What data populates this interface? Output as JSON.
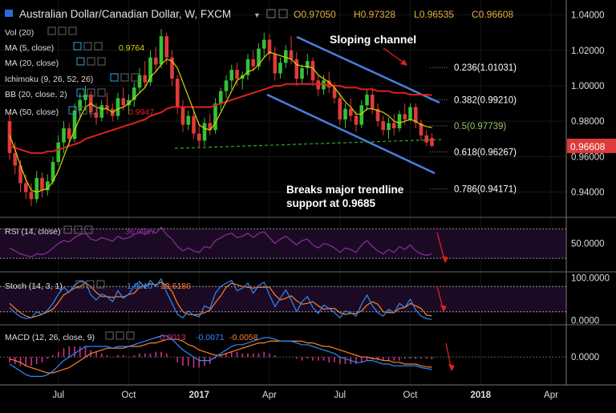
{
  "header": {
    "symbol": "Australian Dollar/Canadian Dollar, W, FXCM",
    "o_label": "O",
    "o": "0.97050",
    "h_label": "H",
    "h": "0.97328",
    "l_label": "L",
    "l": "0.96535",
    "c_label": "C",
    "c": "0.96608"
  },
  "legend": {
    "vol": "Vol (20)",
    "ma5": "MA (5, close)",
    "ma5_value": "0.9764",
    "ma20": "MA (20, close)",
    "ichimoku": "Ichimoku (9, 26, 52, 26)",
    "bb": "BB (20, close, 2)",
    "ma50": "MA (50, close)",
    "ma50_value": "0.9947"
  },
  "annotations": {
    "channel": "Sloping channel",
    "breaks_line1": "Breaks major trendline",
    "breaks_line2": "support at 0.9685"
  },
  "colors": {
    "bull": "#35c235",
    "bear": "#e03a3a",
    "ma5": "#d8d800",
    "ma50": "#e02020",
    "channel": "#4a7fe0",
    "rsi": "#8b2f9c",
    "stoch_k": "#2a8cff",
    "stoch_d": "#ff7f2a",
    "macd": "#2a8cff",
    "signal": "#ff7f2a",
    "hist": "#d0308a",
    "price_tag": "#e03a3a"
  },
  "chart_data": {
    "type": "candlestick",
    "price_axis": {
      "ticks": [
        "1.04000",
        "1.02000",
        "1.00000",
        "0.98000",
        "0.96000",
        "0.94000"
      ],
      "ylim": [
        0.928,
        1.043
      ]
    },
    "last_price": "0.96608",
    "x_ticks": [
      "Jul",
      "Oct",
      "2017",
      "Apr",
      "Jul",
      "Oct",
      "2018",
      "Apr"
    ],
    "fibonacci": [
      {
        "label": "0.236(1.01031)",
        "value": 1.01031
      },
      {
        "label": "0.382(0.99210)",
        "value": 0.9921
      },
      {
        "label": "0.5(0.97739)",
        "value": 0.97739
      },
      {
        "label": "0.618(0.96267)",
        "value": 0.96267
      },
      {
        "label": "0.786(0.94171)",
        "value": 0.94171
      }
    ],
    "candles": [
      [
        0.98,
        0.985,
        0.958,
        0.962
      ],
      [
        0.962,
        0.968,
        0.95,
        0.955
      ],
      [
        0.955,
        0.958,
        0.94,
        0.945
      ],
      [
        0.945,
        0.95,
        0.936,
        0.94
      ],
      [
        0.94,
        0.945,
        0.932,
        0.936
      ],
      [
        0.936,
        0.952,
        0.934,
        0.948
      ],
      [
        0.948,
        0.951,
        0.937,
        0.941
      ],
      [
        0.941,
        0.95,
        0.938,
        0.946
      ],
      [
        0.946,
        0.96,
        0.944,
        0.957
      ],
      [
        0.957,
        0.972,
        0.955,
        0.968
      ],
      [
        0.968,
        0.98,
        0.962,
        0.976
      ],
      [
        0.976,
        0.979,
        0.966,
        0.97
      ],
      [
        0.97,
        0.99,
        0.968,
        0.986
      ],
      [
        0.986,
        0.996,
        0.981,
        0.992
      ],
      [
        0.992,
        1.0,
        0.986,
        0.995
      ],
      [
        0.995,
        0.997,
        0.982,
        0.985
      ],
      [
        0.985,
        0.99,
        0.978,
        0.982
      ],
      [
        0.982,
        0.992,
        0.98,
        0.989
      ],
      [
        0.989,
        0.996,
        0.984,
        0.987
      ],
      [
        0.987,
        0.99,
        0.98,
        0.983
      ],
      [
        0.983,
        0.996,
        0.981,
        0.993
      ],
      [
        0.993,
        0.999,
        0.986,
        0.989
      ],
      [
        0.989,
        0.995,
        0.984,
        0.992
      ],
      [
        0.992,
        1.002,
        0.988,
        0.999
      ],
      [
        0.999,
        1.01,
        0.996,
        1.006
      ],
      [
        1.006,
        1.014,
        0.999,
        1.002
      ],
      [
        1.002,
        1.02,
        1.0,
        1.016
      ],
      [
        1.016,
        1.022,
        1.008,
        1.012
      ],
      [
        1.012,
        1.032,
        1.01,
        1.028
      ],
      [
        1.028,
        1.03,
        1.012,
        1.016
      ],
      [
        1.016,
        1.02,
        1.0,
        1.004
      ],
      [
        1.004,
        1.006,
        0.984,
        0.988
      ],
      [
        0.988,
        0.992,
        0.974,
        0.978
      ],
      [
        0.978,
        0.986,
        0.975,
        0.983
      ],
      [
        0.983,
        0.986,
        0.97,
        0.973
      ],
      [
        0.973,
        0.978,
        0.965,
        0.969
      ],
      [
        0.969,
        0.982,
        0.966,
        0.979
      ],
      [
        0.979,
        0.984,
        0.972,
        0.975
      ],
      [
        0.975,
        0.993,
        0.973,
        0.99
      ],
      [
        0.99,
        0.999,
        0.986,
        0.997
      ],
      [
        0.997,
        1.006,
        0.993,
        1.003
      ],
      [
        1.003,
        1.012,
        0.998,
        1.009
      ],
      [
        1.009,
        1.013,
        1.0,
        1.004
      ],
      [
        1.004,
        1.008,
        0.998,
        1.006
      ],
      [
        1.006,
        1.018,
        1.003,
        1.015
      ],
      [
        1.015,
        1.02,
        1.008,
        1.011
      ],
      [
        1.011,
        1.024,
        1.009,
        1.021
      ],
      [
        1.021,
        1.03,
        1.016,
        1.026
      ],
      [
        1.026,
        1.029,
        1.014,
        1.018
      ],
      [
        1.018,
        1.022,
        1.003,
        1.007
      ],
      [
        1.007,
        1.016,
        1.004,
        1.013
      ],
      [
        1.013,
        1.023,
        1.01,
        1.02
      ],
      [
        1.02,
        1.028,
        1.012,
        1.015
      ],
      [
        1.015,
        1.019,
        1.0,
        1.004
      ],
      [
        1.004,
        1.012,
        1.001,
        1.01
      ],
      [
        1.01,
        1.018,
        1.006,
        1.014
      ],
      [
        1.014,
        1.016,
        1.0,
        1.003
      ],
      [
        1.003,
        1.006,
        0.994,
        0.998
      ],
      [
        0.998,
        1.006,
        0.995,
        1.003
      ],
      [
        1.003,
        1.008,
        0.996,
        0.999
      ],
      [
        0.999,
        1.002,
        0.99,
        0.993
      ],
      [
        0.993,
        0.996,
        0.978,
        0.981
      ],
      [
        0.981,
        0.99,
        0.976,
        0.987
      ],
      [
        0.987,
        0.993,
        0.98,
        0.983
      ],
      [
        0.983,
        0.986,
        0.974,
        0.978
      ],
      [
        0.978,
        0.992,
        0.976,
        0.989
      ],
      [
        0.989,
        0.998,
        0.986,
        0.995
      ],
      [
        0.995,
        0.999,
        0.984,
        0.987
      ],
      [
        0.987,
        0.99,
        0.977,
        0.98
      ],
      [
        0.98,
        0.983,
        0.972,
        0.975
      ],
      [
        0.975,
        0.982,
        0.97,
        0.979
      ],
      [
        0.979,
        0.984,
        0.972,
        0.976
      ],
      [
        0.976,
        0.986,
        0.974,
        0.984
      ],
      [
        0.984,
        0.99,
        0.978,
        0.981
      ],
      [
        0.981,
        0.99,
        0.98,
        0.988
      ],
      [
        0.988,
        0.99,
        0.976,
        0.979
      ],
      [
        0.979,
        0.981,
        0.969,
        0.972
      ],
      [
        0.972,
        0.975,
        0.966,
        0.968
      ],
      [
        0.9705,
        0.97328,
        0.96535,
        0.96608
      ]
    ],
    "ma5": [
      0.972,
      0.964,
      0.955,
      0.947,
      0.941,
      0.94,
      0.941,
      0.942,
      0.946,
      0.952,
      0.96,
      0.968,
      0.975,
      0.982,
      0.988,
      0.99,
      0.988,
      0.987,
      0.987,
      0.985,
      0.987,
      0.988,
      0.99,
      0.993,
      0.996,
      0.999,
      1.005,
      1.008,
      1.012,
      1.015,
      1.014,
      1.01,
      1.002,
      0.994,
      0.986,
      0.978,
      0.976,
      0.975,
      0.979,
      0.985,
      0.991,
      0.997,
      1.003,
      1.005,
      1.008,
      1.009,
      1.012,
      1.016,
      1.019,
      1.018,
      1.017,
      1.016,
      1.015,
      1.012,
      1.011,
      1.011,
      1.01,
      1.006,
      1.004,
      1.002,
      0.999,
      0.995,
      0.991,
      0.988,
      0.984,
      0.984,
      0.987,
      0.987,
      0.986,
      0.985,
      0.983,
      0.98,
      0.979,
      0.98,
      0.981,
      0.98,
      0.978,
      0.977,
      0.9764
    ],
    "ma50": [
      0.966,
      0.965,
      0.964,
      0.963,
      0.962,
      0.962,
      0.962,
      0.963,
      0.963,
      0.964,
      0.965,
      0.966,
      0.967,
      0.968,
      0.97,
      0.971,
      0.972,
      0.973,
      0.974,
      0.975,
      0.976,
      0.977,
      0.978,
      0.979,
      0.98,
      0.981,
      0.983,
      0.984,
      0.985,
      0.987,
      0.988,
      0.988,
      0.988,
      0.988,
      0.988,
      0.988,
      0.988,
      0.988,
      0.989,
      0.99,
      0.991,
      0.992,
      0.993,
      0.994,
      0.995,
      0.996,
      0.997,
      0.998,
      0.999,
      1.0,
      1.0,
      1.001,
      1.001,
      1.001,
      1.001,
      1.001,
      1.001,
      1.001,
      1.001,
      1.0,
      1.0,
      1.0,
      0.999,
      0.999,
      0.999,
      0.998,
      0.998,
      0.998,
      0.997,
      0.997,
      0.997,
      0.996,
      0.996,
      0.996,
      0.995,
      0.995,
      0.995,
      0.995,
      0.9947
    ],
    "rsi": {
      "label": "RSI (14, close)",
      "value": "36.0967",
      "ticks": [
        "50.0000"
      ],
      "ylim": [
        15,
        80
      ],
      "values": [
        44,
        40,
        36,
        34,
        32,
        36,
        35,
        38,
        44,
        50,
        54,
        52,
        58,
        62,
        64,
        56,
        54,
        58,
        56,
        53,
        60,
        56,
        58,
        62,
        66,
        62,
        68,
        64,
        72,
        62,
        56,
        46,
        40,
        44,
        40,
        38,
        46,
        44,
        54,
        58,
        62,
        64,
        58,
        60,
        64,
        58,
        64,
        66,
        58,
        50,
        56,
        60,
        54,
        48,
        54,
        56,
        48,
        44,
        50,
        48,
        44,
        38,
        44,
        42,
        38,
        48,
        54,
        46,
        40,
        36,
        42,
        38,
        46,
        42,
        48,
        40,
        36,
        34,
        36
      ]
    },
    "stoch": {
      "label": "Stoch (14, 3, 1)",
      "k_value": "1.9010",
      "d_value": "10.6186",
      "ticks": [
        "100.0000",
        "0.0000"
      ],
      "ylim": [
        -5,
        105
      ],
      "k": [
        30,
        18,
        8,
        4,
        6,
        20,
        14,
        24,
        40,
        62,
        78,
        66,
        84,
        92,
        90,
        60,
        48,
        62,
        56,
        44,
        70,
        52,
        62,
        80,
        92,
        76,
        94,
        80,
        98,
        66,
        40,
        14,
        6,
        22,
        12,
        8,
        34,
        28,
        64,
        80,
        88,
        94,
        70,
        76,
        88,
        64,
        82,
        90,
        60,
        32,
        52,
        72,
        48,
        20,
        44,
        56,
        30,
        16,
        36,
        28,
        18,
        6,
        22,
        18,
        10,
        38,
        60,
        34,
        18,
        10,
        26,
        18,
        40,
        30,
        50,
        24,
        10,
        4,
        2
      ],
      "d": [
        40,
        28,
        18,
        10,
        6,
        10,
        14,
        20,
        26,
        42,
        60,
        68,
        76,
        80,
        88,
        80,
        66,
        56,
        56,
        54,
        56,
        55,
        61,
        64,
        78,
        82,
        86,
        84,
        90,
        82,
        68,
        40,
        20,
        14,
        13,
        14,
        18,
        24,
        42,
        58,
        78,
        88,
        84,
        80,
        78,
        76,
        78,
        78,
        78,
        60,
        48,
        52,
        58,
        46,
        38,
        40,
        44,
        34,
        26,
        28,
        28,
        18,
        14,
        16,
        16,
        22,
        36,
        44,
        38,
        20,
        18,
        18,
        28,
        30,
        40,
        34,
        28,
        12,
        10.6
      ]
    },
    "macd": {
      "label": "MACD (12, 26, close, 9)",
      "hist_value": "-0.0013",
      "macd_value": "-0.0071",
      "signal_value": "-0.0058",
      "ticks": [
        "0.0000"
      ],
      "ylim": [
        -0.014,
        0.016
      ],
      "macd": [
        -0.004,
        -0.006,
        -0.008,
        -0.01,
        -0.011,
        -0.011,
        -0.011,
        -0.01,
        -0.008,
        -0.005,
        -0.002,
        0.0,
        0.002,
        0.004,
        0.006,
        0.006,
        0.006,
        0.006,
        0.006,
        0.005,
        0.006,
        0.006,
        0.006,
        0.007,
        0.008,
        0.009,
        0.01,
        0.011,
        0.012,
        0.012,
        0.01,
        0.007,
        0.004,
        0.002,
        0.0,
        -0.002,
        -0.002,
        -0.002,
        0.0,
        0.002,
        0.004,
        0.006,
        0.007,
        0.007,
        0.008,
        0.009,
        0.01,
        0.011,
        0.011,
        0.01,
        0.009,
        0.009,
        0.009,
        0.008,
        0.007,
        0.007,
        0.006,
        0.005,
        0.004,
        0.003,
        0.002,
        0.0,
        -0.001,
        -0.002,
        -0.003,
        -0.003,
        -0.002,
        -0.002,
        -0.003,
        -0.004,
        -0.004,
        -0.005,
        -0.005,
        -0.005,
        -0.005,
        -0.005,
        -0.006,
        -0.0065,
        -0.0071
      ],
      "signal": [
        -0.001,
        -0.002,
        -0.003,
        -0.005,
        -0.006,
        -0.007,
        -0.008,
        -0.009,
        -0.009,
        -0.008,
        -0.007,
        -0.006,
        -0.004,
        -0.002,
        0.0,
        0.002,
        0.003,
        0.004,
        0.005,
        0.005,
        0.005,
        0.005,
        0.006,
        0.006,
        0.006,
        0.007,
        0.008,
        0.008,
        0.009,
        0.01,
        0.01,
        0.01,
        0.009,
        0.007,
        0.006,
        0.004,
        0.003,
        0.002,
        0.001,
        0.001,
        0.002,
        0.003,
        0.004,
        0.005,
        0.006,
        0.007,
        0.008,
        0.008,
        0.009,
        0.009,
        0.009,
        0.009,
        0.009,
        0.009,
        0.009,
        0.008,
        0.008,
        0.007,
        0.006,
        0.006,
        0.005,
        0.004,
        0.003,
        0.002,
        0.001,
        0.0,
        0.0,
        -0.001,
        -0.001,
        -0.002,
        -0.002,
        -0.003,
        -0.003,
        -0.004,
        -0.004,
        -0.004,
        -0.005,
        -0.0055,
        -0.0058
      ]
    }
  }
}
